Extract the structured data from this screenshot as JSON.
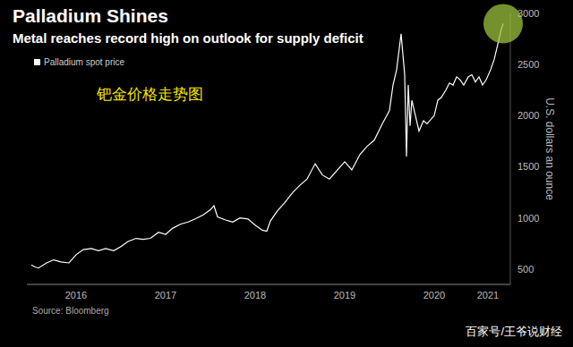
{
  "chart_data": {
    "type": "line",
    "title": "Palladium Shines",
    "subtitle": "Metal reaches record high on outlook for supply deficit",
    "y_label": "U.S. dollars an ounce",
    "annotations": [
      "钯金价格走势图"
    ],
    "source": "Source: Bloomberg",
    "watermark": "百家号/王爷说财经",
    "grid": false,
    "legend": "upper left",
    "x": [
      2016.0,
      2016.04,
      2016.08,
      2016.17,
      2016.25,
      2016.33,
      2016.42,
      2016.5,
      2016.58,
      2016.67,
      2016.75,
      2016.83,
      2016.92,
      2017.0,
      2017.08,
      2017.17,
      2017.25,
      2017.33,
      2017.42,
      2017.5,
      2017.58,
      2017.67,
      2017.75,
      2017.83,
      2017.92,
      2018.0,
      2018.04,
      2018.08,
      2018.17,
      2018.25,
      2018.33,
      2018.42,
      2018.5,
      2018.58,
      2018.63,
      2018.67,
      2018.75,
      2018.83,
      2018.92,
      2019.0,
      2019.08,
      2019.17,
      2019.25,
      2019.33,
      2019.42,
      2019.5,
      2019.58,
      2019.67,
      2019.75,
      2019.83,
      2019.92,
      2020.0,
      2020.04,
      2020.08,
      2020.13,
      2020.15,
      2020.17,
      2020.19,
      2020.21,
      2020.23,
      2020.25,
      2020.29,
      2020.33,
      2020.38,
      2020.42,
      2020.5,
      2020.54,
      2020.58,
      2020.63,
      2020.67,
      2020.71,
      2020.75,
      2020.79,
      2020.83,
      2020.88,
      2020.92,
      2020.96,
      2021.0,
      2021.04,
      2021.08,
      2021.13,
      2021.17,
      2021.21,
      2021.25,
      2021.27
    ],
    "series": [
      {
        "name": "Palladium spot price",
        "color": "#ffffff",
        "values": [
          540,
          520,
          510,
          560,
          590,
          570,
          560,
          640,
          690,
          700,
          680,
          700,
          680,
          720,
          770,
          800,
          790,
          800,
          860,
          840,
          900,
          940,
          960,
          990,
          1030,
          1080,
          1120,
          1010,
          980,
          960,
          1000,
          990,
          930,
          880,
          870,
          970,
          1070,
          1150,
          1250,
          1320,
          1380,
          1530,
          1420,
          1380,
          1470,
          1550,
          1470,
          1620,
          1700,
          1760,
          1920,
          2050,
          2300,
          2450,
          2800,
          2600,
          2400,
          1600,
          2300,
          1900,
          2150,
          2000,
          1850,
          1950,
          1920,
          2000,
          2150,
          2180,
          2250,
          2320,
          2300,
          2380,
          2350,
          2300,
          2380,
          2400,
          2330,
          2380,
          2300,
          2350,
          2450,
          2550,
          2700,
          2850,
          2900
        ]
      }
    ],
    "xlim": [
      2015.95,
      2021.35
    ],
    "xticks": [
      {
        "value": 2016.5,
        "label": "2016"
      },
      {
        "value": 2017.5,
        "label": "2017"
      },
      {
        "value": 2018.5,
        "label": "2018"
      },
      {
        "value": 2019.5,
        "label": "2019"
      },
      {
        "value": 2020.5,
        "label": "2020"
      },
      {
        "value": 2021.1,
        "label": "2021"
      }
    ],
    "ylim": [
      350,
      3000
    ],
    "yticks": [
      500,
      1000,
      1500,
      2000,
      2500,
      3000
    ]
  }
}
